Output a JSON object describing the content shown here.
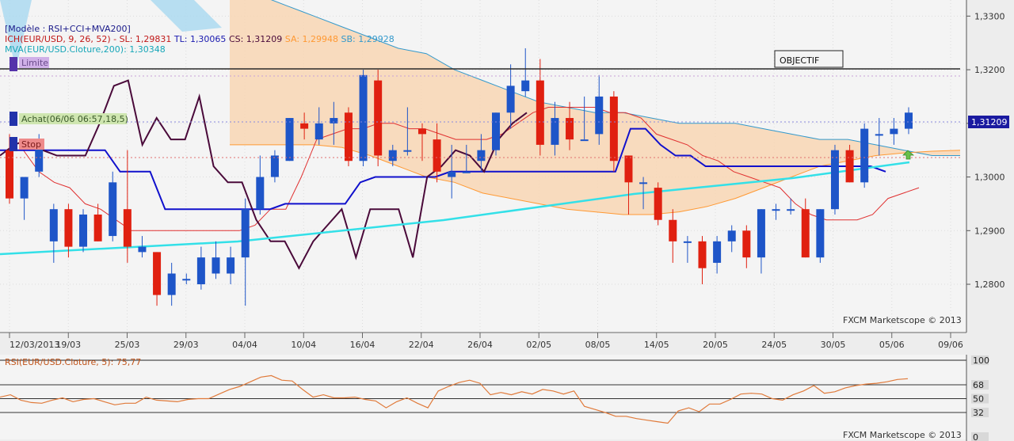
{
  "legend": {
    "model": "[Modèle : RSI+CCI+MVA200]",
    "ich_name": "ICH(EUR/USD, 9, 26, 52)",
    "sl": "SL: 1,29831",
    "tl": "TL: 1,30065",
    "cs": "CS: 1,31209",
    "sa": "SA: 1,29948",
    "sb": "SB: 1,29928",
    "mva": "MVA(EUR/USD.Cloture,200): 1,30348"
  },
  "markers": {
    "limite": "Limite",
    "achat": "Achat(06/06 06:57,18,5)",
    "stop": "Stop",
    "objectif": "OBJECTIF",
    "price_tag": "1,31209"
  },
  "watermark": "FXCM Marketscope © 2013",
  "rsi_label": "RSI(EUR/USD.Cloture, 5): 75,77",
  "colors": {
    "bull": "#1e55c8",
    "bear": "#e02010",
    "tenkan": "#e03030",
    "kijun": "#1010cc",
    "chikou": "#4a0a3a",
    "senkou_a": "#ff9933",
    "senkou_b": "#3399cc",
    "cloud_fill": "#f8d6b4",
    "mva": "#33e0e8",
    "rsi_line": "#e07a3a"
  },
  "chart_data": [
    {
      "type": "candlestick",
      "title": "EUR/USD",
      "x_labels": [
        "12/03/2013",
        "19/03",
        "25/03",
        "29/03",
        "04/04",
        "10/04",
        "16/04",
        "22/04",
        "26/04",
        "02/05",
        "08/05",
        "14/05",
        "20/05",
        "24/05",
        "30/05",
        "05/06",
        "09/06"
      ],
      "y_ticks": [
        "1,3300",
        "1,3200",
        "1,3100",
        "1,3000",
        "1,2900",
        "1,2800"
      ],
      "ylim": [
        1.271,
        1.333
      ],
      "candles": [
        {
          "o": 1.305,
          "h": 1.308,
          "l": 1.295,
          "c": 1.296
        },
        {
          "o": 1.296,
          "h": 1.3,
          "l": 1.292,
          "c": 1.3
        },
        {
          "o": 1.301,
          "h": 1.308,
          "l": 1.3,
          "c": 1.307
        },
        {
          "o": 1.288,
          "h": 1.295,
          "l": 1.284,
          "c": 1.294
        },
        {
          "o": 1.294,
          "h": 1.295,
          "l": 1.285,
          "c": 1.287
        },
        {
          "o": 1.287,
          "h": 1.294,
          "l": 1.286,
          "c": 1.293
        },
        {
          "o": 1.293,
          "h": 1.295,
          "l": 1.288,
          "c": 1.288
        },
        {
          "o": 1.289,
          "h": 1.301,
          "l": 1.288,
          "c": 1.299
        },
        {
          "o": 1.294,
          "h": 1.305,
          "l": 1.284,
          "c": 1.287
        },
        {
          "o": 1.286,
          "h": 1.289,
          "l": 1.285,
          "c": 1.287
        },
        {
          "o": 1.286,
          "h": 1.286,
          "l": 1.276,
          "c": 1.278
        },
        {
          "o": 1.278,
          "h": 1.284,
          "l": 1.276,
          "c": 1.282
        },
        {
          "o": 1.281,
          "h": 1.282,
          "l": 1.28,
          "c": 1.281
        },
        {
          "o": 1.28,
          "h": 1.287,
          "l": 1.279,
          "c": 1.285
        },
        {
          "o": 1.282,
          "h": 1.288,
          "l": 1.281,
          "c": 1.285
        },
        {
          "o": 1.282,
          "h": 1.287,
          "l": 1.28,
          "c": 1.285
        },
        {
          "o": 1.285,
          "h": 1.296,
          "l": 1.276,
          "c": 1.294
        },
        {
          "o": 1.294,
          "h": 1.304,
          "l": 1.293,
          "c": 1.3
        },
        {
          "o": 1.3,
          "h": 1.305,
          "l": 1.299,
          "c": 1.304
        },
        {
          "o": 1.303,
          "h": 1.311,
          "l": 1.303,
          "c": 1.311
        },
        {
          "o": 1.31,
          "h": 1.312,
          "l": 1.307,
          "c": 1.309
        },
        {
          "o": 1.307,
          "h": 1.313,
          "l": 1.306,
          "c": 1.31
        },
        {
          "o": 1.31,
          "h": 1.314,
          "l": 1.306,
          "c": 1.311
        },
        {
          "o": 1.312,
          "h": 1.313,
          "l": 1.302,
          "c": 1.303
        },
        {
          "o": 1.303,
          "h": 1.32,
          "l": 1.302,
          "c": 1.319
        },
        {
          "o": 1.318,
          "h": 1.32,
          "l": 1.302,
          "c": 1.304
        },
        {
          "o": 1.303,
          "h": 1.306,
          "l": 1.302,
          "c": 1.305
        },
        {
          "o": 1.305,
          "h": 1.313,
          "l": 1.304,
          "c": 1.305
        },
        {
          "o": 1.309,
          "h": 1.31,
          "l": 1.303,
          "c": 1.308
        },
        {
          "o": 1.307,
          "h": 1.31,
          "l": 1.299,
          "c": 1.301
        },
        {
          "o": 1.3,
          "h": 1.306,
          "l": 1.296,
          "c": 1.301
        },
        {
          "o": 1.301,
          "h": 1.306,
          "l": 1.301,
          "c": 1.301
        },
        {
          "o": 1.303,
          "h": 1.308,
          "l": 1.301,
          "c": 1.305
        },
        {
          "o": 1.305,
          "h": 1.312,
          "l": 1.304,
          "c": 1.312
        },
        {
          "o": 1.312,
          "h": 1.321,
          "l": 1.309,
          "c": 1.317
        },
        {
          "o": 1.316,
          "h": 1.324,
          "l": 1.315,
          "c": 1.318
        },
        {
          "o": 1.318,
          "h": 1.322,
          "l": 1.304,
          "c": 1.306
        },
        {
          "o": 1.306,
          "h": 1.314,
          "l": 1.304,
          "c": 1.311
        },
        {
          "o": 1.311,
          "h": 1.314,
          "l": 1.305,
          "c": 1.307
        },
        {
          "o": 1.307,
          "h": 1.315,
          "l": 1.307,
          "c": 1.307
        },
        {
          "o": 1.308,
          "h": 1.319,
          "l": 1.306,
          "c": 1.315
        },
        {
          "o": 1.315,
          "h": 1.316,
          "l": 1.301,
          "c": 1.303
        },
        {
          "o": 1.304,
          "h": 1.304,
          "l": 1.293,
          "c": 1.299
        },
        {
          "o": 1.299,
          "h": 1.3,
          "l": 1.294,
          "c": 1.299
        },
        {
          "o": 1.298,
          "h": 1.299,
          "l": 1.291,
          "c": 1.292
        },
        {
          "o": 1.292,
          "h": 1.294,
          "l": 1.284,
          "c": 1.288
        },
        {
          "o": 1.288,
          "h": 1.289,
          "l": 1.284,
          "c": 1.288
        },
        {
          "o": 1.288,
          "h": 1.289,
          "l": 1.28,
          "c": 1.283
        },
        {
          "o": 1.284,
          "h": 1.289,
          "l": 1.282,
          "c": 1.288
        },
        {
          "o": 1.288,
          "h": 1.291,
          "l": 1.286,
          "c": 1.29
        },
        {
          "o": 1.29,
          "h": 1.291,
          "l": 1.283,
          "c": 1.285
        },
        {
          "o": 1.285,
          "h": 1.294,
          "l": 1.282,
          "c": 1.294
        },
        {
          "o": 1.294,
          "h": 1.295,
          "l": 1.292,
          "c": 1.294
        },
        {
          "o": 1.294,
          "h": 1.296,
          "l": 1.293,
          "c": 1.294
        },
        {
          "o": 1.294,
          "h": 1.296,
          "l": 1.285,
          "c": 1.285
        },
        {
          "o": 1.285,
          "h": 1.294,
          "l": 1.284,
          "c": 1.294
        },
        {
          "o": 1.294,
          "h": 1.306,
          "l": 1.293,
          "c": 1.305
        },
        {
          "o": 1.305,
          "h": 1.306,
          "l": 1.299,
          "c": 1.299
        },
        {
          "o": 1.299,
          "h": 1.31,
          "l": 1.298,
          "c": 1.309
        },
        {
          "o": 1.308,
          "h": 1.311,
          "l": 1.304,
          "c": 1.308
        },
        {
          "o": 1.308,
          "h": 1.311,
          "l": 1.306,
          "c": 1.309
        },
        {
          "o": 1.309,
          "h": 1.313,
          "l": 1.308,
          "c": 1.312
        }
      ],
      "tenkan": [
        1.305,
        1.305,
        1.301,
        1.299,
        1.298,
        1.295,
        1.294,
        1.292,
        1.29,
        1.29,
        1.29,
        1.29,
        1.29,
        1.29,
        1.29,
        1.29,
        1.291,
        1.294,
        1.294,
        1.3,
        1.307,
        1.308,
        1.309,
        1.309,
        1.31,
        1.31,
        1.309,
        1.309,
        1.308,
        1.307,
        1.307,
        1.307,
        1.308,
        1.31,
        1.312,
        1.313,
        1.313,
        1.313,
        1.313,
        1.312,
        1.312,
        1.311,
        1.308,
        1.307,
        1.306,
        1.304,
        1.303,
        1.301,
        1.3,
        1.299,
        1.298,
        1.295,
        1.293,
        1.292,
        1.292,
        1.292,
        1.293,
        1.296,
        1.297,
        1.298
      ],
      "kijun": [
        1.305,
        1.305,
        1.305,
        1.305,
        1.305,
        1.305,
        1.305,
        1.305,
        1.301,
        1.301,
        1.301,
        1.294,
        1.294,
        1.294,
        1.294,
        1.294,
        1.294,
        1.294,
        1.294,
        1.295,
        1.295,
        1.295,
        1.295,
        1.295,
        1.299,
        1.3,
        1.3,
        1.3,
        1.3,
        1.3,
        1.301,
        1.301,
        1.301,
        1.301,
        1.301,
        1.301,
        1.301,
        1.301,
        1.301,
        1.301,
        1.301,
        1.301,
        1.309,
        1.309,
        1.306,
        1.304,
        1.304,
        1.302,
        1.302,
        1.302,
        1.302,
        1.302,
        1.302,
        1.302,
        1.302,
        1.302,
        1.302,
        1.302,
        1.302,
        1.301
      ],
      "chikou": [
        1.304,
        1.306,
        1.307,
        1.305,
        1.304,
        1.304,
        1.304,
        1.31,
        1.317,
        1.318,
        1.306,
        1.311,
        1.307,
        1.307,
        1.315,
        1.302,
        1.299,
        1.299,
        1.292,
        1.288,
        1.288,
        1.283,
        1.288,
        1.291,
        1.294,
        1.285,
        1.294,
        1.294,
        1.294,
        1.285,
        1.3,
        1.302,
        1.305,
        1.304,
        1.301,
        1.307,
        1.31,
        1.312
      ]
    },
    {
      "type": "line",
      "title": "RSI(EUR/USD.Cloture, 5): 75,77",
      "y_ticks": [
        "100",
        "68",
        "50",
        "32",
        "0"
      ],
      "ylim": [
        0,
        100
      ],
      "levels": [
        68,
        50,
        32
      ],
      "values": [
        52,
        55,
        48,
        45,
        44,
        48,
        51,
        46,
        49,
        50,
        46,
        42,
        44,
        44,
        52,
        48,
        47,
        46,
        49,
        50,
        50,
        56,
        62,
        66,
        72,
        78,
        80,
        74,
        73,
        62,
        52,
        55,
        51,
        51,
        52,
        49,
        47,
        38,
        46,
        51,
        44,
        38,
        60,
        66,
        71,
        74,
        70,
        55,
        58,
        55,
        59,
        56,
        62,
        60,
        56,
        60,
        40,
        36,
        32,
        27,
        27,
        24,
        22,
        20,
        18,
        34,
        38,
        33,
        43,
        43,
        49,
        56,
        57,
        56,
        50,
        48,
        55,
        60,
        67,
        57,
        59,
        64,
        67,
        69,
        70,
        72,
        75,
        76
      ]
    }
  ]
}
